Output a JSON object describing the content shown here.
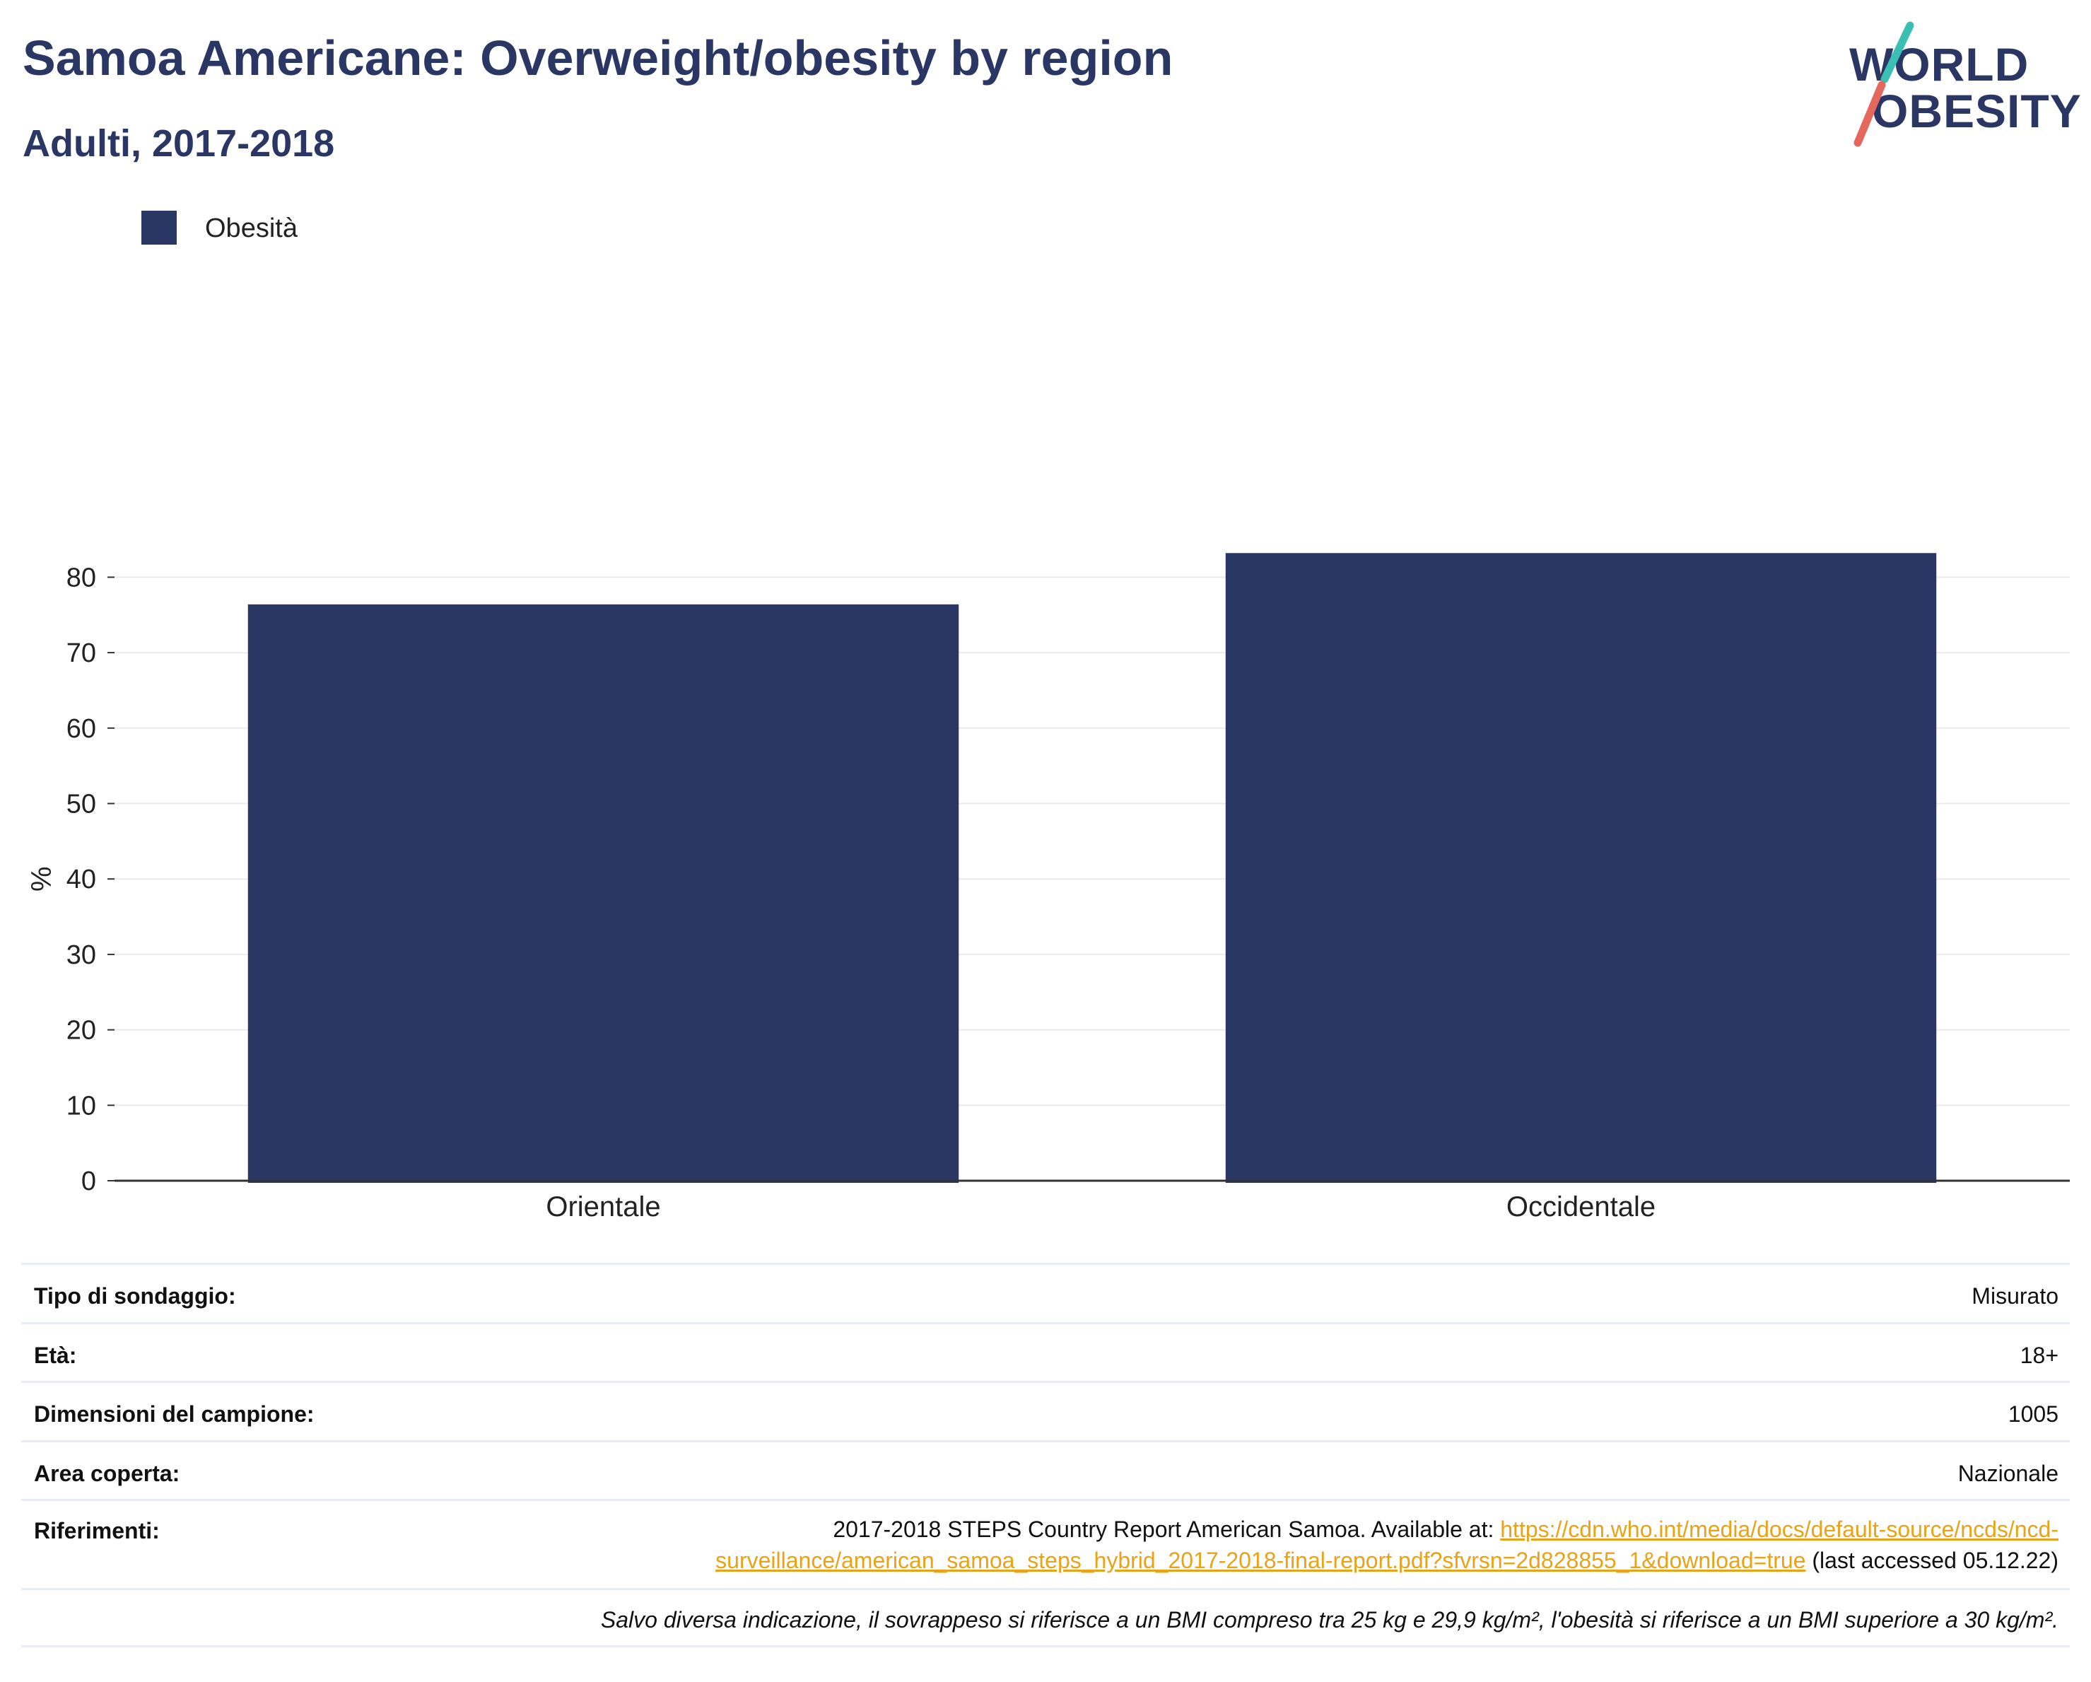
{
  "header": {
    "title": "Samoa Americane: Overweight/obesity by region",
    "subtitle": "Adulti, 2017-2018"
  },
  "logo": {
    "line1": "WORLD",
    "line2": "OBESITY",
    "colors": {
      "text": "#2a3663",
      "slash_top": "#3bbfb3",
      "slash_bottom": "#e4685b"
    }
  },
  "colors": {
    "bar": "#2a3663",
    "grid": "#e9ebef",
    "axis": "#333333",
    "link": "#e8a317"
  },
  "chart_data": {
    "type": "bar",
    "title": "Samoa Americane: Overweight/obesity by region",
    "subtitle": "Adulti, 2017-2018",
    "categories": [
      "Orientale",
      "Occidentale"
    ],
    "series": [
      {
        "name": "Obesità",
        "values": [
          76.4,
          83.2
        ],
        "color": "#2a3663"
      }
    ],
    "xlabel": "",
    "ylabel": "%",
    "ylim": [
      0,
      85
    ],
    "yticks": [
      0,
      10,
      20,
      30,
      40,
      50,
      60,
      70,
      80
    ],
    "grid": true,
    "legend": "top-left"
  },
  "info": {
    "rows": [
      {
        "key": "Tipo di sondaggio:",
        "value": "Misurato"
      },
      {
        "key": "Età:",
        "value": "18+"
      },
      {
        "key": "Dimensioni del campione:",
        "value": "1005"
      },
      {
        "key": "Area coperta:",
        "value": "Nazionale"
      }
    ],
    "references": {
      "key": "Riferimenti:",
      "text_before": "2017-2018 STEPS Country Report American Samoa. Available at: ",
      "link_line1": "https://cdn.who.int/media/docs/default-source/ncds/ncd-",
      "link_line2": "surveillance/american_samoa_steps_hybrid_2017-2018-final-report.pdf?sfvrsn=2d828855_1&download=true",
      "text_after": " (last accessed 05.12.22)"
    },
    "note": "Salvo diversa indicazione, il sovrappeso si riferisce a un BMI compreso tra 25 kg e 29,9 kg/m², l'obesità si riferisce a un BMI superiore a 30 kg/m²."
  }
}
